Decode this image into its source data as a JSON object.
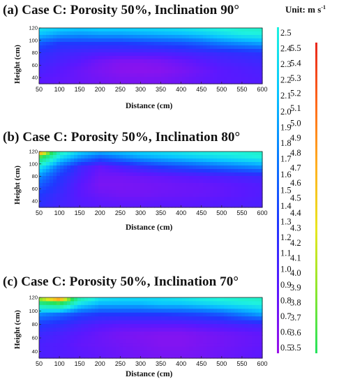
{
  "unit_label": {
    "prefix": "Unit: m s",
    "exponent": "-1"
  },
  "chart_data": [
    {
      "type": "heatmap",
      "title": "(a) Case C: Porosity 50%, Inclination 90°",
      "xlabel": "Distance (cm)",
      "ylabel": "Height (cm)",
      "xlim": [
        50,
        600
      ],
      "ylim": [
        30,
        120
      ],
      "xticks": [
        50,
        100,
        150,
        200,
        250,
        300,
        350,
        400,
        450,
        500,
        550,
        600
      ],
      "yticks": [
        40,
        60,
        80,
        100,
        120
      ],
      "colorbar": "main",
      "x": [
        50,
        100,
        150,
        200,
        250,
        300,
        350,
        400,
        450,
        500,
        550,
        600
      ],
      "y": [
        35,
        50,
        65,
        80,
        95,
        110,
        120
      ],
      "values": [
        [
          0.9,
          0.85,
          0.8,
          0.75,
          0.7,
          0.7,
          0.72,
          0.78,
          0.85,
          0.9,
          0.92,
          0.95
        ],
        [
          1.0,
          0.9,
          0.8,
          0.7,
          0.62,
          0.6,
          0.62,
          0.7,
          0.8,
          0.9,
          0.95,
          1.0
        ],
        [
          1.1,
          1.0,
          0.9,
          0.75,
          0.65,
          0.65,
          0.7,
          0.8,
          0.9,
          1.0,
          1.05,
          1.1
        ],
        [
          1.2,
          1.1,
          1.05,
          1.0,
          1.0,
          1.0,
          1.0,
          1.05,
          1.1,
          1.15,
          1.2,
          1.25
        ],
        [
          1.5,
          1.3,
          1.3,
          1.3,
          1.3,
          1.35,
          1.4,
          1.45,
          1.55,
          1.7,
          1.8,
          1.9
        ],
        [
          2.1,
          1.9,
          1.85,
          1.9,
          1.9,
          1.95,
          2.0,
          2.05,
          2.15,
          2.3,
          2.45,
          2.5
        ],
        [
          2.35,
          2.2,
          2.15,
          2.2,
          2.2,
          2.25,
          2.3,
          2.35,
          2.45,
          2.55,
          2.65,
          2.7
        ]
      ]
    },
    {
      "type": "heatmap",
      "title": "(b) Case C: Porosity 50%, Inclination 80°",
      "xlabel": "Distance (cm)",
      "ylabel": "Height (cm)",
      "xlim": [
        50,
        600
      ],
      "ylim": [
        30,
        120
      ],
      "xticks": [
        50,
        100,
        150,
        200,
        250,
        300,
        350,
        400,
        450,
        500,
        550,
        600
      ],
      "yticks": [
        40,
        60,
        80,
        100,
        120
      ],
      "colorbar": "main",
      "x": [
        50,
        100,
        150,
        200,
        250,
        300,
        350,
        400,
        450,
        500,
        550,
        600
      ],
      "y": [
        35,
        50,
        65,
        80,
        95,
        110,
        120
      ],
      "values": [
        [
          1.2,
          1.05,
          0.95,
          0.9,
          0.88,
          0.88,
          0.9,
          0.9,
          0.92,
          0.95,
          0.97,
          1.0
        ],
        [
          1.3,
          1.1,
          0.9,
          0.8,
          0.75,
          0.75,
          0.78,
          0.8,
          0.82,
          0.85,
          0.9,
          0.95
        ],
        [
          1.5,
          1.2,
          0.9,
          0.7,
          0.7,
          0.72,
          0.75,
          0.78,
          0.8,
          0.85,
          0.9,
          0.95
        ],
        [
          1.8,
          1.3,
          1.0,
          0.75,
          0.75,
          0.8,
          0.85,
          0.9,
          0.95,
          1.0,
          1.05,
          1.1
        ],
        [
          2.4,
          1.6,
          1.1,
          0.85,
          1.0,
          1.15,
          1.3,
          1.4,
          1.5,
          1.6,
          1.7,
          1.8
        ],
        [
          3.5,
          2.3,
          1.8,
          1.5,
          1.7,
          1.9,
          2.0,
          2.1,
          2.2,
          2.3,
          2.4,
          2.5
        ],
        [
          5.2,
          2.8,
          2.2,
          2.0,
          2.1,
          2.2,
          2.3,
          2.4,
          2.5,
          2.55,
          2.6,
          2.7
        ]
      ]
    },
    {
      "type": "heatmap",
      "title": "(c) Case C: Porosity 50%, Inclination 70°",
      "xlabel": "Distance (cm)",
      "ylabel": "Height (cm)",
      "xlim": [
        50,
        600
      ],
      "ylim": [
        30,
        120
      ],
      "xticks": [
        50,
        100,
        150,
        200,
        250,
        300,
        350,
        400,
        450,
        500,
        550,
        600
      ],
      "yticks": [
        40,
        60,
        80,
        100,
        120
      ],
      "colorbar": "main",
      "x": [
        50,
        100,
        150,
        200,
        250,
        300,
        350,
        400,
        450,
        500,
        550,
        600
      ],
      "y": [
        35,
        50,
        65,
        80,
        95,
        110,
        120
      ],
      "values": [
        [
          1.0,
          0.95,
          0.9,
          0.85,
          0.8,
          0.75,
          0.72,
          0.72,
          0.75,
          0.8,
          0.85,
          0.9
        ],
        [
          1.0,
          0.95,
          0.85,
          0.8,
          0.75,
          0.7,
          0.65,
          0.65,
          0.7,
          0.75,
          0.8,
          0.85
        ],
        [
          1.1,
          1.0,
          0.9,
          0.8,
          0.72,
          0.68,
          0.65,
          0.65,
          0.7,
          0.75,
          0.8,
          0.85
        ],
        [
          1.3,
          1.2,
          1.05,
          0.95,
          0.9,
          0.9,
          0.9,
          0.9,
          0.95,
          1.0,
          1.05,
          1.1
        ],
        [
          1.8,
          1.6,
          1.4,
          1.3,
          1.3,
          1.3,
          1.3,
          1.35,
          1.4,
          1.5,
          1.7,
          1.9
        ],
        [
          3.0,
          3.3,
          2.3,
          2.0,
          2.0,
          2.0,
          2.1,
          2.1,
          2.2,
          2.3,
          2.4,
          2.5
        ],
        [
          4.2,
          5.3,
          3.0,
          2.4,
          2.3,
          2.3,
          2.3,
          2.4,
          2.5,
          2.6,
          2.7,
          2.75
        ]
      ]
    }
  ],
  "colorbars": [
    {
      "name": "main",
      "min": 0.5,
      "max": 2.5,
      "ticks": [
        "2.5",
        "2.4",
        "2.3",
        "2.2",
        "2.1",
        "2.0",
        "1.9",
        "1.8",
        "1.7",
        "1.6",
        "1.5",
        "1.4",
        "1.3",
        "1.2",
        "1.1",
        "1.0",
        "0.9",
        "0.8",
        "0.7",
        "0.6",
        "0.5"
      ],
      "colors": [
        "#9a11e8",
        "#5a18ff",
        "#2038ff",
        "#0a7cff",
        "#09c6ff",
        "#1ef2df"
      ]
    },
    {
      "name": "secondary",
      "min": 3.5,
      "max": 5.5,
      "ticks": [
        "5.5",
        "5.4",
        "5.3",
        "5.2",
        "5.1",
        "5.0",
        "4.9",
        "4.8",
        "4.7",
        "4.6",
        "4.5",
        "4.4",
        "4.3",
        "4.2",
        "4.1",
        "4.0",
        "3.9",
        "3.8",
        "3.7",
        "3.6",
        "3.5"
      ],
      "colors": [
        "#23e25c",
        "#8be62e",
        "#e8e61e",
        "#ffb020",
        "#ff6a1a",
        "#e8261c"
      ]
    }
  ]
}
